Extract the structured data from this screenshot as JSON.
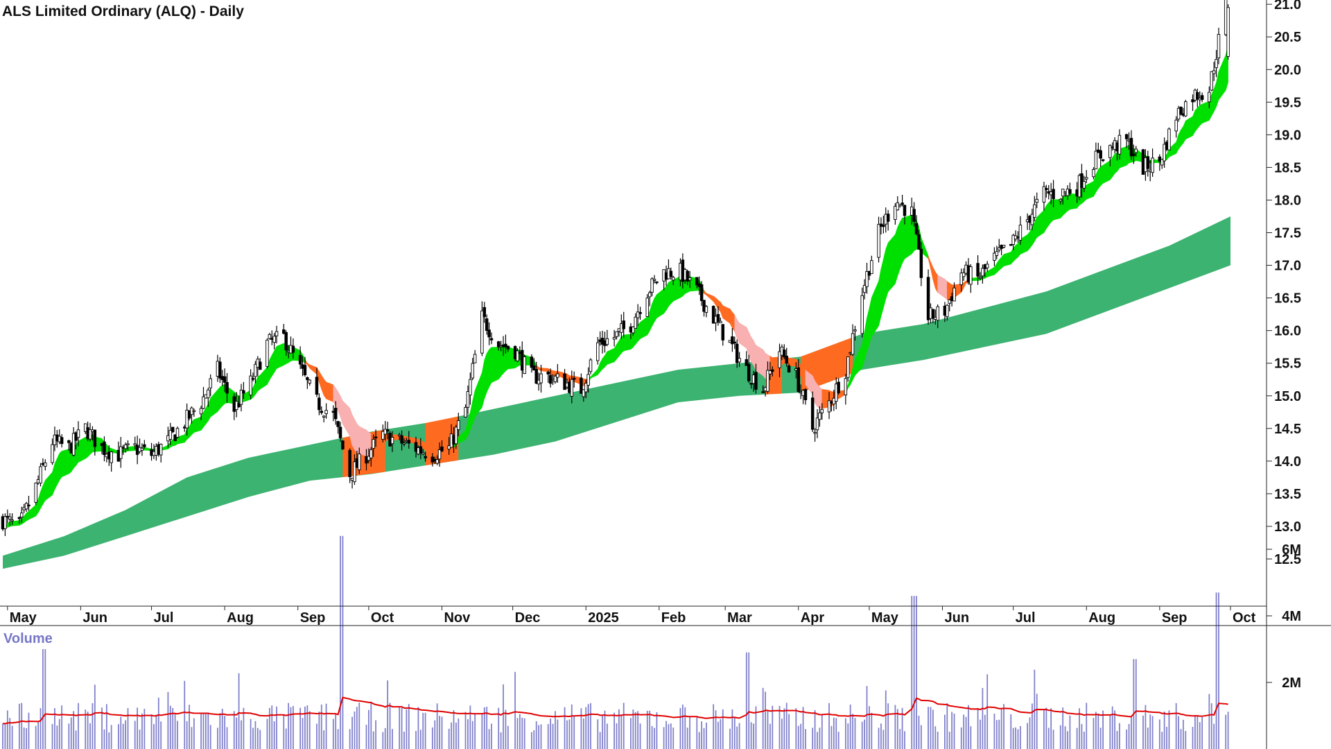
{
  "chart_data": [
    {
      "type": "candlestick",
      "title": "ALS Limited Ordinary (ALQ) - Daily",
      "y_ticks": [
        "21.0",
        "20.5",
        "20.0",
        "19.5",
        "19.0",
        "18.5",
        "18.0",
        "17.5",
        "17.0",
        "16.5",
        "16.0",
        "15.5",
        "15.0",
        "14.5",
        "14.0",
        "13.5",
        "13.0",
        "12.5"
      ],
      "ylim": [
        12.2,
        21.4
      ],
      "x_ticks": [
        "May",
        "Jun",
        "Jul",
        "Aug",
        "Sep",
        "Oct",
        "Nov",
        "Dec",
        "2025",
        "Feb",
        "Mar",
        "Apr",
        "May",
        "Jun",
        "Jul",
        "Aug",
        "Sep",
        "Oct"
      ],
      "price_anchors": {
        "dates": [
          "2024-04-29",
          "2024-05-06",
          "2024-05-13",
          "2024-05-20",
          "2024-05-27",
          "2024-06-03",
          "2024-06-10",
          "2024-06-17",
          "2024-06-24",
          "2024-07-01",
          "2024-07-08",
          "2024-07-15",
          "2024-07-22",
          "2024-07-29",
          "2024-08-05",
          "2024-08-12",
          "2024-08-19",
          "2024-08-26",
          "2024-09-02",
          "2024-09-09",
          "2024-09-16",
          "2024-09-23",
          "2024-09-30",
          "2024-10-07",
          "2024-10-14",
          "2024-10-21",
          "2024-10-28",
          "2024-11-04",
          "2024-11-11",
          "2024-11-18",
          "2024-11-25",
          "2024-12-02",
          "2024-12-09",
          "2024-12-16",
          "2024-12-23",
          "2024-12-30",
          "2025-01-06",
          "2025-01-13",
          "2025-01-20",
          "2025-01-27",
          "2025-02-03",
          "2025-02-10",
          "2025-02-17",
          "2025-02-24",
          "2025-03-03",
          "2025-03-10",
          "2025-03-17",
          "2025-03-24",
          "2025-03-31",
          "2025-04-07",
          "2025-04-14",
          "2025-04-21",
          "2025-04-28",
          "2025-05-05",
          "2025-05-12",
          "2025-05-19",
          "2025-05-26",
          "2025-06-02",
          "2025-06-09",
          "2025-06-16",
          "2025-06-23",
          "2025-06-30",
          "2025-07-07",
          "2025-07-14",
          "2025-07-21",
          "2025-07-28",
          "2025-08-04",
          "2025-08-11",
          "2025-08-18",
          "2025-08-25",
          "2025-09-01",
          "2025-09-08",
          "2025-09-15",
          "2025-09-22",
          "2025-09-29"
        ],
        "close": [
          13.1,
          13.0,
          13.6,
          14.3,
          14.2,
          14.5,
          14.2,
          14.1,
          14.2,
          14.1,
          14.3,
          14.6,
          14.9,
          15.4,
          14.8,
          15.2,
          15.8,
          15.9,
          15.4,
          14.9,
          14.7,
          13.8,
          14.1,
          14.4,
          14.3,
          14.2,
          14.1,
          14.2,
          14.8,
          16.2,
          15.8,
          15.7,
          15.3,
          15.3,
          15.2,
          15.1,
          15.8,
          15.9,
          16.1,
          16.6,
          16.9,
          16.9,
          16.6,
          16.2,
          15.8,
          15.4,
          15.1,
          15.7,
          15.3,
          14.5,
          14.9,
          15.4,
          16.6,
          17.5,
          18.0,
          17.8,
          16.2,
          16.3,
          16.9,
          16.8,
          17.1,
          17.3,
          17.7,
          18.1,
          18.1,
          18.2,
          18.6,
          18.8,
          18.9,
          18.5,
          18.6,
          19.3,
          19.6,
          19.7,
          21.0
        ]
      },
      "ema_fast_band": {
        "description": "short-term moving average ribbon",
        "bull_color": "#00e000",
        "bear_color": "#ff6a21",
        "weak_color": "#f8b0b0"
      },
      "ema_slow_band": {
        "description": "long-term moving average ribbon",
        "color": "#3cb371",
        "overlap_color": "#ff6a21",
        "upper": [
          12.55,
          12.85,
          13.25,
          13.75,
          14.05,
          14.25,
          14.45,
          14.6,
          14.8,
          15.0,
          15.2,
          15.4,
          15.5,
          15.6,
          15.95,
          16.1,
          16.35,
          16.6,
          16.95,
          17.3,
          17.75
        ],
        "lower": [
          12.35,
          12.55,
          12.85,
          13.15,
          13.45,
          13.7,
          13.8,
          13.95,
          14.1,
          14.3,
          14.6,
          14.9,
          15.0,
          15.05,
          15.4,
          15.55,
          15.75,
          15.95,
          16.3,
          16.65,
          17.0
        ]
      }
    },
    {
      "type": "bar",
      "title": "Volume",
      "y_ticks": [
        "6M",
        "4M",
        "2M"
      ],
      "ylim": [
        0,
        6900000
      ],
      "average_line_color": "#e00000",
      "bar_color": "#8080cc",
      "typical_volume": 1000000,
      "spikes": [
        {
          "date": "2024-09-20",
          "volume": 6400000
        },
        {
          "date": "2024-05-17",
          "volume": 3000000
        },
        {
          "date": "2025-05-20",
          "volume": 4600000
        },
        {
          "date": "2025-09-26",
          "volume": 4700000
        },
        {
          "date": "2025-03-10",
          "volume": 2900000
        },
        {
          "date": "2025-08-22",
          "volume": 2700000
        }
      ]
    }
  ]
}
